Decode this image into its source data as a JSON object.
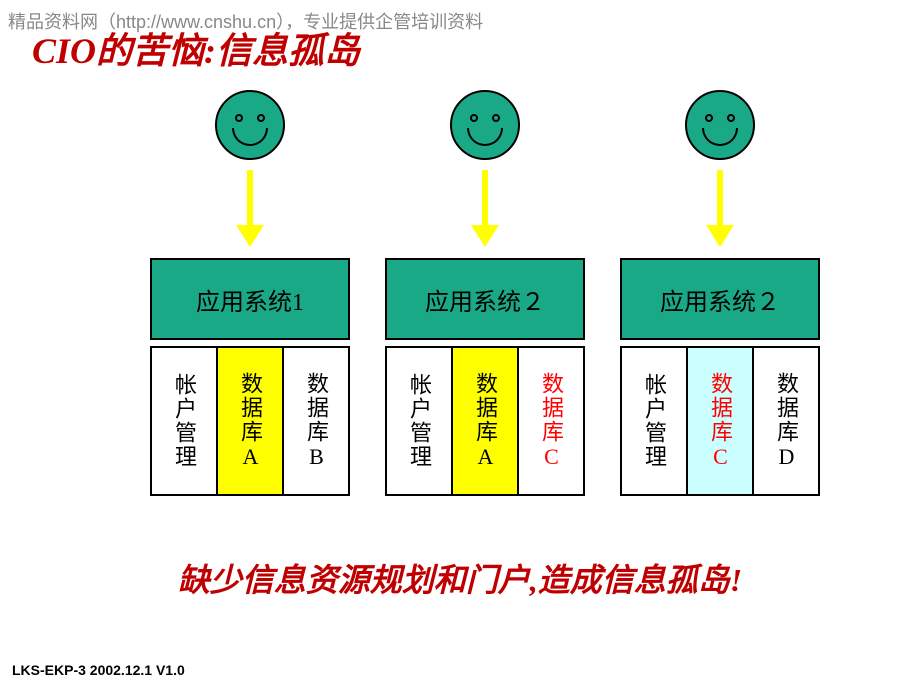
{
  "watermark": "精品资料网（http://www.cnshu.cn），专业提供企管培训资料",
  "title": "CIO的苦恼:信息孤岛",
  "colors": {
    "face_fill": "#1aa987",
    "arrow": "#ffff00",
    "app_box_fill": "#1aa987",
    "title_color": "#c00000",
    "bottom_color": "#c00000",
    "db_white": "#ffffff",
    "db_yellow": "#ffff00",
    "db_cyan": "#ccffff",
    "text_black": "#000000",
    "text_red": "#ff0000"
  },
  "columns": [
    {
      "app_label": "应用系统1",
      "dbs": [
        {
          "label": "帐户管理",
          "bg": "#ffffff",
          "color": "#000000"
        },
        {
          "label": "数据库A",
          "bg": "#ffff00",
          "color": "#000000"
        },
        {
          "label": "数据库B",
          "bg": "#ffffff",
          "color": "#000000"
        }
      ]
    },
    {
      "app_label": "应用系统２",
      "dbs": [
        {
          "label": "帐户管理",
          "bg": "#ffffff",
          "color": "#000000"
        },
        {
          "label": "数据库A",
          "bg": "#ffff00",
          "color": "#000000"
        },
        {
          "label": "数据库C",
          "bg": "#ffffff",
          "color": "#ff0000"
        }
      ]
    },
    {
      "app_label": "应用系统２",
      "dbs": [
        {
          "label": "帐户管理",
          "bg": "#ffffff",
          "color": "#000000"
        },
        {
          "label": "数据库C",
          "bg": "#ccffff",
          "color": "#ff0000"
        },
        {
          "label": "数据库D",
          "bg": "#ffffff",
          "color": "#000000"
        }
      ]
    }
  ],
  "bottom_text": "缺少信息资源规划和门户,造成信息孤岛!",
  "footer": "LKS-EKP-3  2002.12.1 V1.0"
}
